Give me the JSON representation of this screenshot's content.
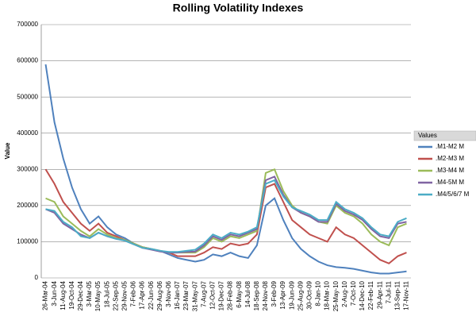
{
  "chart_data": {
    "type": "line",
    "title": "Rolling Volatility Indexes",
    "y_label": "Value",
    "legend_title": "Values",
    "legend": "right",
    "grid": true,
    "ylim": [
      0,
      700000
    ],
    "yticks": [
      0,
      100000,
      200000,
      300000,
      400000,
      500000,
      600000,
      700000
    ],
    "categories": [
      "26-Mar-04",
      "3-Jun-04",
      "11-Aug-04",
      "19-Oct-04",
      "29-Dec-04",
      "3-Mar-05",
      "10-May-05",
      "18-Jul-05",
      "22-Sep-05",
      "29-Nov-05",
      "7-Feb-06",
      "17-Apr-06",
      "22-Jun-06",
      "29-Aug-06",
      "3-Nov-06",
      "16-Jan-07",
      "23-Mar-07",
      "31-May-07",
      "7-Aug-07",
      "12-Oct-07",
      "19-Dec-07",
      "28-Feb-08",
      "6-May-08",
      "14-Jul-08",
      "18-Sep-08",
      "24-Nov-08",
      "3-Feb-09",
      "13-Apr-09",
      "19-Jun-09",
      "25-Aug-09",
      "30-Oct-09",
      "8-Jan-10",
      "18-Mar-10",
      "25-May-10",
      "2-Aug-10",
      "7-Oct-10",
      "14-Dec-10",
      "22-Feb-11",
      "29-Apr-11",
      "7-Jul-11",
      "13-Sep-11",
      "17-Nov-11"
    ],
    "series": [
      {
        "name": ".M1-M2 M",
        "color": "#4f81bd",
        "values": [
          590000,
          430000,
          330000,
          250000,
          190000,
          150000,
          170000,
          140000,
          120000,
          110000,
          95000,
          85000,
          80000,
          75000,
          65000,
          55000,
          50000,
          45000,
          50000,
          65000,
          60000,
          70000,
          60000,
          55000,
          90000,
          200000,
          220000,
          160000,
          110000,
          80000,
          60000,
          45000,
          35000,
          30000,
          28000,
          25000,
          20000,
          15000,
          12000,
          12000,
          15000,
          18000
        ]
      },
      {
        "name": ".M2-M3 M",
        "color": "#c0504d",
        "values": [
          300000,
          260000,
          210000,
          180000,
          150000,
          130000,
          150000,
          125000,
          115000,
          105000,
          95000,
          85000,
          80000,
          75000,
          70000,
          60000,
          60000,
          60000,
          70000,
          85000,
          80000,
          95000,
          90000,
          95000,
          120000,
          250000,
          260000,
          210000,
          160000,
          140000,
          120000,
          110000,
          100000,
          140000,
          120000,
          110000,
          90000,
          70000,
          50000,
          40000,
          60000,
          70000
        ]
      },
      {
        "name": ".M3-M4 M",
        "color": "#9bbb59",
        "values": [
          220000,
          210000,
          170000,
          150000,
          130000,
          115000,
          135000,
          120000,
          110000,
          105000,
          95000,
          85000,
          80000,
          75000,
          70000,
          70000,
          70000,
          70000,
          85000,
          110000,
          100000,
          115000,
          110000,
          120000,
          130000,
          290000,
          300000,
          240000,
          200000,
          180000,
          170000,
          155000,
          150000,
          200000,
          180000,
          170000,
          150000,
          120000,
          100000,
          90000,
          140000,
          150000
        ]
      },
      {
        "name": ".M4-5M M",
        "color": "#8064a2",
        "values": [
          190000,
          180000,
          150000,
          135000,
          120000,
          110000,
          125000,
          115000,
          108000,
          103000,
          93000,
          83000,
          78000,
          73000,
          70000,
          70000,
          72000,
          73000,
          90000,
          115000,
          105000,
          120000,
          115000,
          125000,
          135000,
          270000,
          280000,
          230000,
          195000,
          180000,
          170000,
          155000,
          155000,
          205000,
          185000,
          175000,
          160000,
          135000,
          115000,
          110000,
          150000,
          155000
        ]
      },
      {
        "name": ".M4/5/6/7 M",
        "color": "#4bacc6",
        "values": [
          190000,
          185000,
          155000,
          140000,
          115000,
          110000,
          125000,
          115000,
          108000,
          103000,
          93000,
          83000,
          80000,
          75000,
          72000,
          72000,
          75000,
          78000,
          95000,
          120000,
          110000,
          125000,
          120000,
          128000,
          140000,
          260000,
          270000,
          225000,
          195000,
          185000,
          175000,
          160000,
          160000,
          210000,
          190000,
          180000,
          165000,
          140000,
          120000,
          115000,
          155000,
          165000
        ]
      }
    ]
  }
}
